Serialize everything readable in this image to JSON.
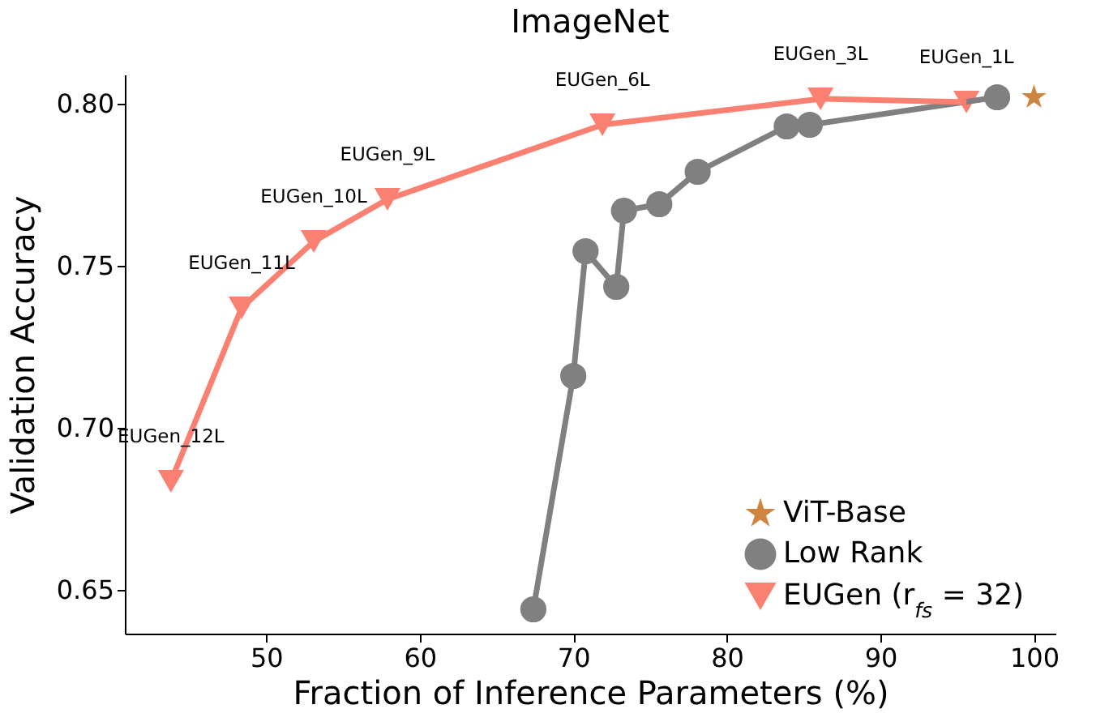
{
  "chart_data": {
    "type": "scatter",
    "title": "ImageNet",
    "xlabel": "Fraction of Inference Parameters (%)",
    "ylabel": "Validation Accuracy",
    "xlim": [
      40.8,
      101.4
    ],
    "ylim": [
      0.6365,
      0.809
    ],
    "xticks": [
      50,
      60,
      70,
      80,
      90,
      100
    ],
    "yticks": [
      {
        "value": 0.65,
        "label": "0.65"
      },
      {
        "value": 0.7,
        "label": "0.70"
      },
      {
        "value": 0.75,
        "label": "0.75"
      },
      {
        "value": 0.8,
        "label": "0.80"
      }
    ],
    "grid": false,
    "legend": "bottom right",
    "series": [
      {
        "name": "ViT-Base",
        "marker": "star",
        "color": "#cd853f",
        "x": [
          100
        ],
        "values": [
          0.802
        ]
      },
      {
        "name": "Low Rank",
        "type": "line",
        "marker": "circle",
        "color": "#808080",
        "x": [
          67.4,
          70.0,
          70.8,
          72.8,
          73.3,
          75.6,
          78.1,
          83.9,
          85.4,
          97.6
        ],
        "values": [
          0.644,
          0.716,
          0.7545,
          0.7435,
          0.767,
          0.769,
          0.779,
          0.793,
          0.7935,
          0.802
        ]
      },
      {
        "name": "EUGen (r$_{fs}$ = 32)",
        "type": "line",
        "marker": "triangle",
        "color": "#fa8072",
        "x": [
          43.8,
          48.4,
          53.1,
          57.9,
          71.9,
          86.1,
          95.6
        ],
        "values": [
          0.6835,
          0.737,
          0.7575,
          0.7705,
          0.7935,
          0.8015,
          0.8005
        ]
      }
    ],
    "annotations": [
      {
        "text": "EUGen_12L",
        "x": 43.8,
        "y": 0.6835
      },
      {
        "text": "EUGen_11L",
        "x": 48.4,
        "y": 0.737
      },
      {
        "text": "EUGen_10L",
        "x": 53.1,
        "y": 0.7575
      },
      {
        "text": "EUGen_9L",
        "x": 57.9,
        "y": 0.7705
      },
      {
        "text": "EUGen_6L",
        "x": 71.9,
        "y": 0.7935
      },
      {
        "text": "EUGen_3L",
        "x": 86.1,
        "y": 0.8015
      },
      {
        "text": "EUGen_1L",
        "x": 95.6,
        "y": 0.8005
      }
    ]
  }
}
